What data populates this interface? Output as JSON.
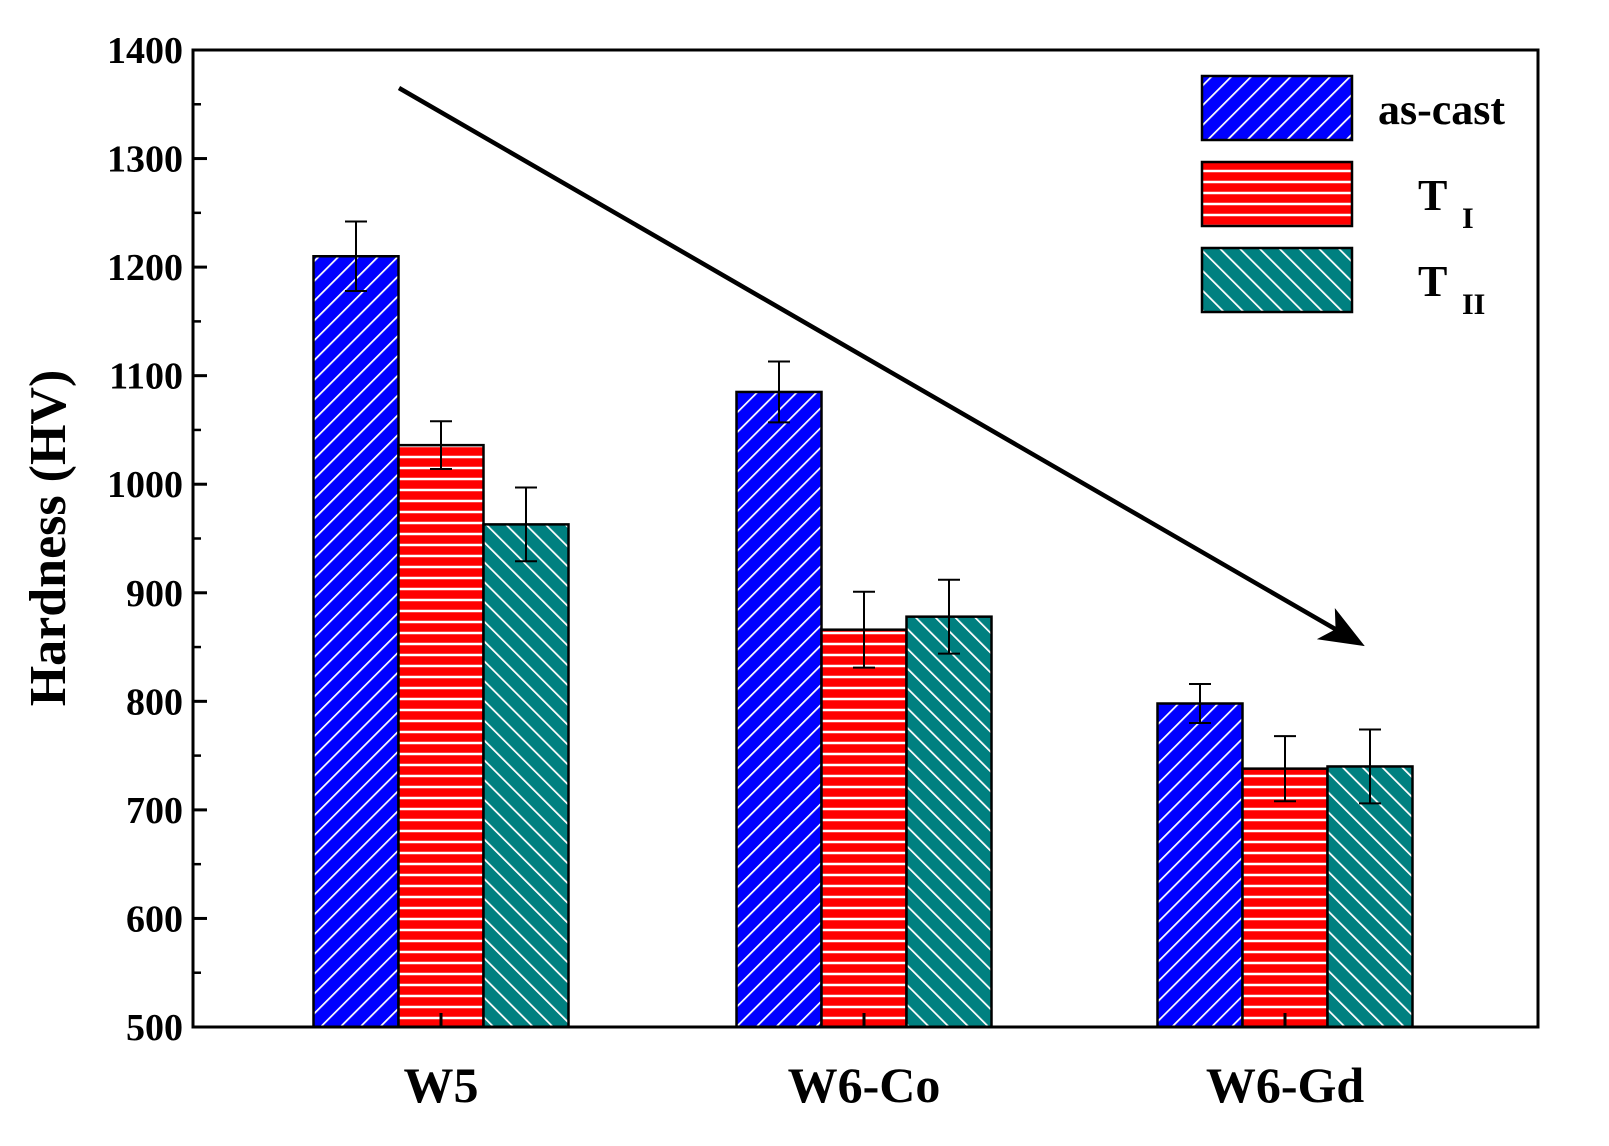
{
  "chart_data": {
    "type": "bar",
    "title": "",
    "xlabel": "",
    "ylabel": "Hardness (HV)",
    "ylim": [
      500,
      1400
    ],
    "yticks": [
      500,
      600,
      700,
      800,
      900,
      1000,
      1100,
      1200,
      1300,
      1400
    ],
    "y_minor_step": 50,
    "categories": [
      "W5",
      "W6-Co",
      "W6-Gd"
    ],
    "legend_position": "top-right",
    "series": [
      {
        "name": "as-cast",
        "legend_main": "as-cast",
        "legend_sub": "",
        "color": "#0000ff",
        "pattern": "diagonal-right",
        "values": [
          1210,
          1085,
          798
        ],
        "errors": [
          32,
          28,
          18
        ]
      },
      {
        "name": "TI",
        "legend_main": "T",
        "legend_sub": "I",
        "color": "#ff0000",
        "pattern": "horizontal",
        "values": [
          1036,
          866,
          738
        ],
        "errors": [
          22,
          35,
          30
        ]
      },
      {
        "name": "TII",
        "legend_main": "T",
        "legend_sub": "II",
        "color": "#008080",
        "pattern": "diagonal-left",
        "values": [
          963,
          878,
          740
        ],
        "errors": [
          34,
          34,
          34
        ]
      }
    ],
    "annotation": {
      "type": "arrow",
      "description": "decreasing trend",
      "from": {
        "category": 0,
        "y": 1365
      },
      "to": {
        "category": 2,
        "y": 855
      }
    }
  }
}
